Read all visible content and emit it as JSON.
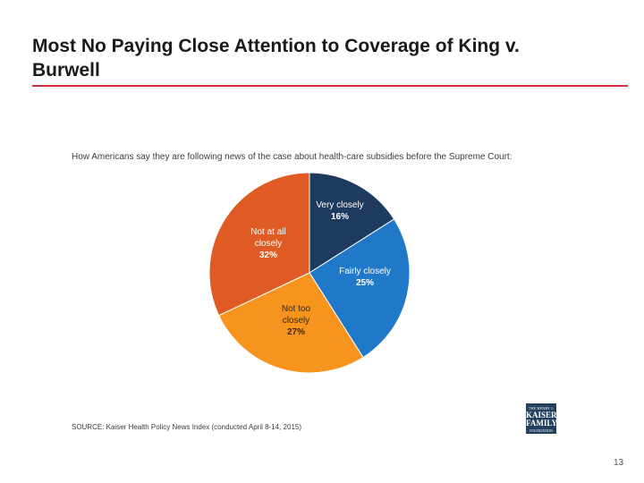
{
  "slide": {
    "title": "Most No Paying Close Attention to Coverage of King v. Burwell",
    "page_number": "13"
  },
  "logo": {
    "line1": "THE HENRY J.",
    "line2": "KAISER",
    "line3": "FAMILY",
    "line4": "FOUNDATION"
  },
  "chart_data": {
    "type": "pie",
    "title": "How Americans say they are following news of the case about health-care subsidies before the Supreme Court:",
    "source": "SOURCE: Kaiser Health Policy News Index (conducted April 8-14, 2015)",
    "slices": [
      {
        "label": [
          "Very closely"
        ],
        "value": 16,
        "display": "16%",
        "color": "#1f3a5f"
      },
      {
        "label": [
          "Fairly closely"
        ],
        "value": 25,
        "display": "25%",
        "color": "#1f78c8"
      },
      {
        "label": [
          "Not too",
          "closely"
        ],
        "value": 27,
        "display": "27%",
        "color": "#f7941d"
      },
      {
        "label": [
          "Not at all",
          "closely"
        ],
        "value": 32,
        "display": "32%",
        "color": "#e05a24"
      }
    ]
  }
}
